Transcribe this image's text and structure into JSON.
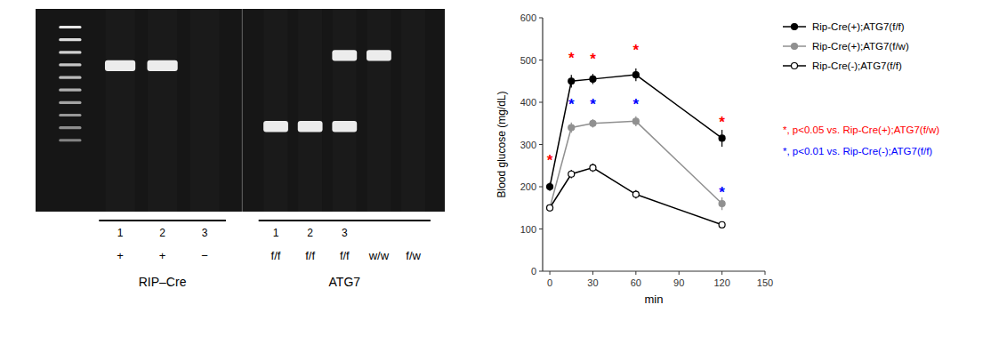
{
  "chart_data": [
    {
      "type": "gel",
      "groups": [
        {
          "name": "RIP–Cre",
          "lanes": [
            "1",
            "2",
            "3"
          ],
          "genotypes": [
            "+",
            "+",
            "−"
          ]
        },
        {
          "name": "ATG7",
          "lanes": [
            "1",
            "2",
            "3",
            null,
            null
          ],
          "genotypes": [
            "f/f",
            "f/f",
            "f/f",
            "w/w",
            "f/w"
          ]
        }
      ]
    },
    {
      "type": "line",
      "xlabel": "min",
      "ylabel": "Blood glucose (mg/dL)",
      "xlim": [
        -5,
        150
      ],
      "ylim": [
        0,
        600
      ],
      "xticks": [
        0,
        30,
        60,
        90,
        120,
        150
      ],
      "yticks": [
        0,
        100,
        200,
        300,
        400,
        500,
        600
      ],
      "x": [
        0,
        15,
        30,
        60,
        120
      ],
      "grid": false,
      "legend": "right",
      "series": [
        {
          "name": "Rip-Cre(+);ATG7(f/f)",
          "color": "#000000",
          "marker": "circle",
          "values": [
            200,
            450,
            455,
            465,
            315
          ],
          "errors": [
            10,
            15,
            12,
            15,
            20
          ]
        },
        {
          "name": "Rip-Cre(+);ATG7(f/w)",
          "color": "#909090",
          "marker": "circle",
          "values": [
            150,
            340,
            350,
            355,
            160
          ],
          "errors": [
            8,
            12,
            10,
            12,
            15
          ]
        },
        {
          "name": "Rip-Cre(-);ATG7(f/f)",
          "color": "#000000",
          "marker": "hollow-circle",
          "values": [
            150,
            230,
            245,
            182,
            110
          ],
          "errors": [
            8,
            10,
            10,
            10,
            8
          ]
        }
      ],
      "annotations": [
        {
          "text": "*",
          "x": 0,
          "y": 268,
          "color": "#ff0000"
        },
        {
          "text": "*",
          "x": 15,
          "y": 510,
          "color": "#ff0000"
        },
        {
          "text": "*",
          "x": 30,
          "y": 508,
          "color": "#ff0000"
        },
        {
          "text": "*",
          "x": 60,
          "y": 528,
          "color": "#ff0000"
        },
        {
          "text": "*",
          "x": 120,
          "y": 358,
          "color": "#ff0000"
        },
        {
          "text": "*",
          "x": 15,
          "y": 400,
          "color": "#0000ff"
        },
        {
          "text": "*",
          "x": 30,
          "y": 400,
          "color": "#0000ff"
        },
        {
          "text": "*",
          "x": 60,
          "y": 400,
          "color": "#0000ff"
        },
        {
          "text": "*",
          "x": 120,
          "y": 192,
          "color": "#0000ff"
        },
        {
          "text": "*, p<0.05 vs. Rip-Cre(+);ATG7(f/w)",
          "color": "#ff0000"
        },
        {
          "text": "*, p<0.01 vs. Rip-Cre(-);ATG7(f/f)",
          "color": "#0000ff"
        }
      ]
    }
  ]
}
